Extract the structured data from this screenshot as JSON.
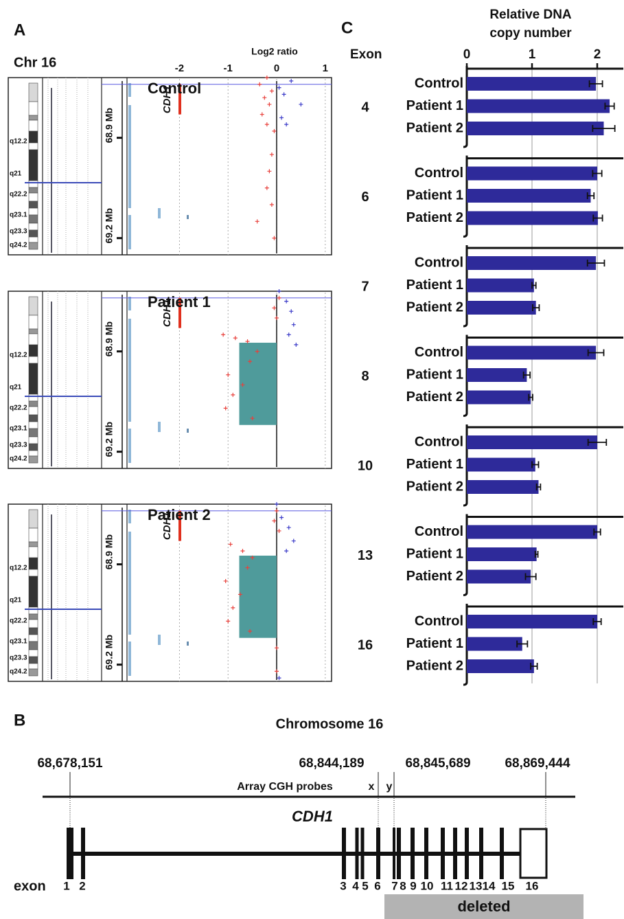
{
  "panel_labels": [
    "A",
    "B",
    "C"
  ],
  "cgh": {
    "chromosome": "Chr 16",
    "x_label": "Log2 ratio",
    "xlim": [
      -3.08,
      1.13
    ],
    "xticks": [
      -2,
      -1,
      0,
      1
    ],
    "ylim": [
      68.72,
      69.25
    ],
    "yticks": [
      {
        "value": 68.9,
        "label": "68.9 Mb"
      },
      {
        "value": 69.2,
        "label": "69.2 Mb"
      }
    ],
    "bands": [
      "q12.2",
      "q21",
      "q22.2",
      "q23.1",
      "q23.3",
      "q24.2"
    ],
    "gene": {
      "label": "CDH1",
      "start": 68.74,
      "end": 68.83
    },
    "loss_color": "#e8413c",
    "gain_color": "#3b3bc8",
    "segment_color": "#4f9b9b",
    "panels": [
      {
        "title": "Control",
        "loss": [
          [
            68.72,
            -0.2
          ],
          [
            68.74,
            -0.35
          ],
          [
            68.76,
            -0.1
          ],
          [
            68.78,
            -0.25
          ],
          [
            68.8,
            -0.15
          ],
          [
            68.83,
            -0.3
          ],
          [
            68.86,
            -0.2
          ],
          [
            68.88,
            -0.05
          ],
          [
            68.95,
            -0.1
          ],
          [
            69.0,
            -0.15
          ],
          [
            69.05,
            -0.2
          ],
          [
            69.1,
            -0.1
          ],
          [
            69.15,
            -0.4
          ],
          [
            69.2,
            -0.05
          ]
        ],
        "gain": [
          [
            68.73,
            0.3
          ],
          [
            68.75,
            0.05
          ],
          [
            68.77,
            0.15
          ],
          [
            68.8,
            0.5
          ],
          [
            68.84,
            0.1
          ],
          [
            68.86,
            0.2
          ]
        ]
      },
      {
        "title": "Patient 1",
        "loss": [
          [
            68.74,
            0.05
          ],
          [
            68.77,
            -0.05
          ],
          [
            68.8,
            0
          ],
          [
            68.85,
            -1.1
          ],
          [
            68.86,
            -0.85
          ],
          [
            68.87,
            -0.6
          ],
          [
            68.9,
            -0.4
          ],
          [
            68.93,
            -0.55
          ],
          [
            68.97,
            -1.0
          ],
          [
            69.0,
            -0.7
          ],
          [
            69.03,
            -0.9
          ],
          [
            69.07,
            -1.05
          ],
          [
            69.1,
            -0.5
          ]
        ],
        "gain": [
          [
            68.72,
            0.05
          ],
          [
            68.75,
            0.2
          ],
          [
            68.78,
            0.3
          ],
          [
            68.82,
            0.35
          ],
          [
            68.85,
            0.25
          ],
          [
            68.88,
            0.4
          ]
        ],
        "segment": {
          "start": 68.874,
          "end": 69.12,
          "log2": -0.77
        }
      },
      {
        "title": "Patient 2",
        "loss": [
          [
            68.74,
            0
          ],
          [
            68.77,
            -0.05
          ],
          [
            68.8,
            0.05
          ],
          [
            68.84,
            -0.95
          ],
          [
            68.86,
            -0.7
          ],
          [
            68.88,
            -0.5
          ],
          [
            68.91,
            -0.6
          ],
          [
            68.95,
            -1.05
          ],
          [
            68.99,
            -0.75
          ],
          [
            69.03,
            -0.9
          ],
          [
            69.07,
            -1.0
          ],
          [
            69.1,
            -0.55
          ],
          [
            69.15,
            0
          ],
          [
            69.22,
            0
          ]
        ],
        "gain": [
          [
            68.72,
            0.0
          ],
          [
            68.76,
            0.1
          ],
          [
            68.79,
            0.25
          ],
          [
            68.83,
            0.35
          ],
          [
            68.86,
            0.2
          ],
          [
            69.24,
            0.05
          ]
        ],
        "segment": {
          "start": 68.874,
          "end": 69.12,
          "log2": -0.77
        }
      }
    ]
  },
  "chart_data": {
    "type": "bar",
    "orientation": "horizontal",
    "title": "Relative DNA copy number",
    "y_label": "Exon",
    "categories": [
      "4",
      "6",
      "7",
      "8",
      "10",
      "13",
      "16"
    ],
    "series": [
      {
        "name": "Control",
        "color": "#2e2a9a",
        "values": [
          1.98,
          2.0,
          1.98,
          1.98,
          2.0,
          2.0,
          2.0
        ],
        "errors": [
          0.1,
          0.07,
          0.13,
          0.12,
          0.14,
          0.05,
          0.06
        ]
      },
      {
        "name": "Patient 1",
        "color": "#2e2a9a",
        "values": [
          2.19,
          1.9,
          1.03,
          0.92,
          1.05,
          1.07,
          0.85
        ],
        "errors": [
          0.07,
          0.05,
          0.03,
          0.05,
          0.05,
          0.02,
          0.08
        ]
      },
      {
        "name": "Patient 2",
        "color": "#2e2a9a",
        "values": [
          2.1,
          2.01,
          1.06,
          0.98,
          1.1,
          0.98,
          1.03
        ],
        "errors": [
          0.17,
          0.07,
          0.05,
          0.03,
          0.03,
          0.08,
          0.05
        ]
      }
    ],
    "xlim": [
      0,
      2.4
    ],
    "xticks": [
      0,
      1,
      2
    ],
    "grid": true
  },
  "gene_map": {
    "title": "Chromosome 16",
    "coordinates": [
      "68,678,151",
      "68,844,189",
      "68,845,689",
      "68,869,444"
    ],
    "probe_track_label": "Array CGH probes",
    "probes": [
      "x",
      "y"
    ],
    "gene": "CDH1",
    "exon_label": "exon",
    "exons": [
      "1",
      "2",
      "3",
      "4",
      "5",
      "6",
      "7",
      "8",
      "9",
      "10",
      "11",
      "12",
      "13",
      "14",
      "15",
      "16"
    ],
    "deleted_label": "deleted"
  }
}
